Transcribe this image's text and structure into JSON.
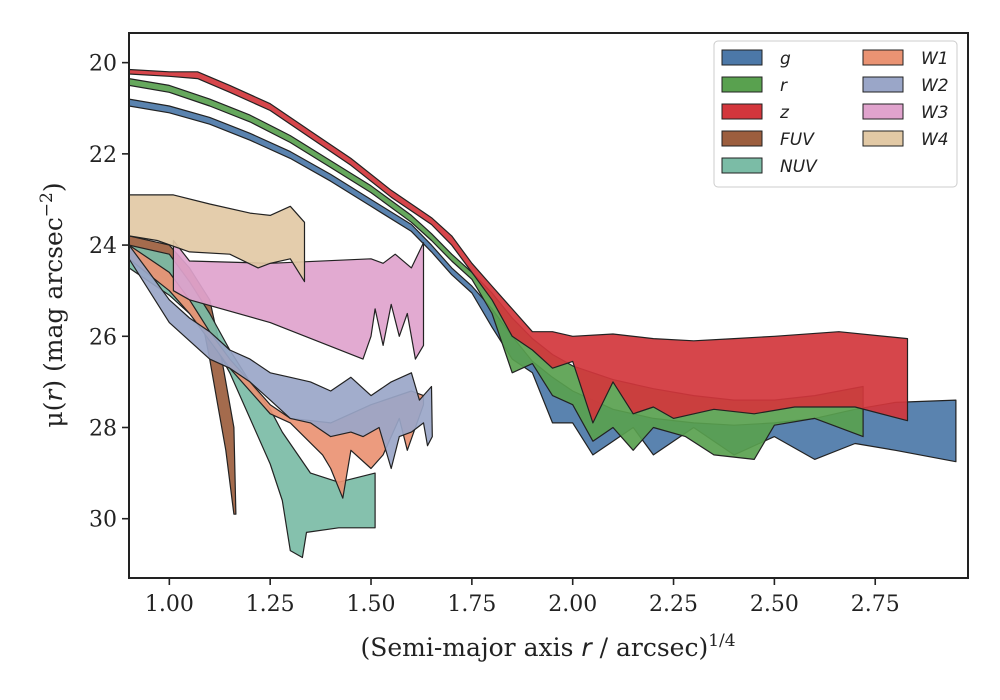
{
  "chart_data": {
    "type": "area",
    "xlabel": "(Semi-major axis r / arcsec)^{1/4}",
    "ylabel": "μ(r) (mag arcsec^{-2})",
    "xlim": [
      0.9,
      2.98
    ],
    "ylim": [
      31.3,
      19.35
    ],
    "y_inverted": true,
    "xticks": [
      "1.00",
      "1.25",
      "1.50",
      "1.75",
      "2.00",
      "2.25",
      "2.50",
      "2.75"
    ],
    "yticks": [
      "20",
      "22",
      "24",
      "26",
      "28",
      "30"
    ],
    "legend": {
      "placement": "top-right",
      "columns": 2
    },
    "series": [
      {
        "name": "g",
        "color": "#4c78a8",
        "upper": [
          [
            0.9,
            20.8
          ],
          [
            1.0,
            20.95
          ],
          [
            1.1,
            21.2
          ],
          [
            1.2,
            21.55
          ],
          [
            1.3,
            21.95
          ],
          [
            1.4,
            22.45
          ],
          [
            1.5,
            23.0
          ],
          [
            1.6,
            23.55
          ],
          [
            1.65,
            24.0
          ],
          [
            1.7,
            24.5
          ],
          [
            1.75,
            24.9
          ],
          [
            1.8,
            25.4
          ],
          [
            1.85,
            26.0
          ],
          [
            1.9,
            26.55
          ],
          [
            1.95,
            26.9
          ],
          [
            2.0,
            27.2
          ],
          [
            2.05,
            27.4
          ],
          [
            2.1,
            27.6
          ],
          [
            2.2,
            27.8
          ],
          [
            2.3,
            27.9
          ],
          [
            2.4,
            27.95
          ],
          [
            2.5,
            27.9
          ],
          [
            2.6,
            27.8
          ],
          [
            2.7,
            27.6
          ],
          [
            2.8,
            27.45
          ],
          [
            2.95,
            27.4
          ]
        ],
        "lower": [
          [
            2.95,
            28.75
          ],
          [
            2.8,
            28.5
          ],
          [
            2.7,
            28.35
          ],
          [
            2.6,
            28.7
          ],
          [
            2.5,
            28.2
          ],
          [
            2.4,
            28.6
          ],
          [
            2.3,
            28.0
          ],
          [
            2.2,
            28.6
          ],
          [
            2.15,
            28.0
          ],
          [
            2.1,
            28.3
          ],
          [
            2.05,
            28.6
          ],
          [
            2.0,
            27.9
          ],
          [
            1.95,
            27.9
          ],
          [
            1.9,
            26.8
          ],
          [
            1.85,
            26.5
          ],
          [
            1.8,
            25.8
          ],
          [
            1.75,
            25.05
          ],
          [
            1.7,
            24.65
          ],
          [
            1.65,
            24.15
          ],
          [
            1.6,
            23.7
          ],
          [
            1.5,
            23.15
          ],
          [
            1.4,
            22.6
          ],
          [
            1.3,
            22.1
          ],
          [
            1.2,
            21.7
          ],
          [
            1.1,
            21.35
          ],
          [
            1.0,
            21.1
          ],
          [
            0.9,
            20.95
          ]
        ]
      },
      {
        "name": "r",
        "color": "#59a14f",
        "upper": [
          [
            0.9,
            20.35
          ],
          [
            1.0,
            20.5
          ],
          [
            1.1,
            20.8
          ],
          [
            1.2,
            21.15
          ],
          [
            1.3,
            21.6
          ],
          [
            1.4,
            22.15
          ],
          [
            1.5,
            22.7
          ],
          [
            1.6,
            23.35
          ],
          [
            1.65,
            23.75
          ],
          [
            1.7,
            24.2
          ],
          [
            1.75,
            24.6
          ],
          [
            1.8,
            25.05
          ],
          [
            1.85,
            25.6
          ],
          [
            1.9,
            26.05
          ],
          [
            1.95,
            26.4
          ],
          [
            2.0,
            26.65
          ],
          [
            2.1,
            26.95
          ],
          [
            2.2,
            27.15
          ],
          [
            2.3,
            27.3
          ],
          [
            2.4,
            27.4
          ],
          [
            2.5,
            27.4
          ],
          [
            2.6,
            27.3
          ],
          [
            2.72,
            27.1
          ]
        ],
        "lower": [
          [
            2.72,
            28.2
          ],
          [
            2.6,
            27.8
          ],
          [
            2.5,
            27.95
          ],
          [
            2.45,
            28.7
          ],
          [
            2.35,
            28.6
          ],
          [
            2.28,
            28.2
          ],
          [
            2.2,
            28.0
          ],
          [
            2.15,
            28.5
          ],
          [
            2.1,
            28.0
          ],
          [
            2.05,
            28.3
          ],
          [
            2.0,
            27.5
          ],
          [
            1.95,
            27.3
          ],
          [
            1.9,
            26.6
          ],
          [
            1.85,
            26.8
          ],
          [
            1.8,
            25.5
          ],
          [
            1.75,
            24.75
          ],
          [
            1.7,
            24.35
          ],
          [
            1.65,
            23.9
          ],
          [
            1.6,
            23.5
          ],
          [
            1.5,
            22.85
          ],
          [
            1.4,
            22.3
          ],
          [
            1.3,
            21.75
          ],
          [
            1.2,
            21.3
          ],
          [
            1.1,
            20.95
          ],
          [
            1.0,
            20.65
          ],
          [
            0.9,
            20.5
          ]
        ]
      },
      {
        "name": "z",
        "color": "#d3363c",
        "upper": [
          [
            0.9,
            20.15
          ],
          [
            1.0,
            20.2
          ],
          [
            1.07,
            20.2
          ],
          [
            1.15,
            20.5
          ],
          [
            1.25,
            20.9
          ],
          [
            1.35,
            21.5
          ],
          [
            1.45,
            22.1
          ],
          [
            1.55,
            22.8
          ],
          [
            1.65,
            23.4
          ],
          [
            1.7,
            23.8
          ],
          [
            1.75,
            24.4
          ],
          [
            1.8,
            24.9
          ],
          [
            1.85,
            25.4
          ],
          [
            1.9,
            25.9
          ],
          [
            1.95,
            25.9
          ],
          [
            2.0,
            26.0
          ],
          [
            2.1,
            25.95
          ],
          [
            2.2,
            26.05
          ],
          [
            2.3,
            26.1
          ],
          [
            2.4,
            26.05
          ],
          [
            2.5,
            26.0
          ],
          [
            2.66,
            25.9
          ],
          [
            2.83,
            26.05
          ]
        ],
        "lower": [
          [
            2.83,
            27.85
          ],
          [
            2.7,
            27.55
          ],
          [
            2.55,
            27.55
          ],
          [
            2.45,
            27.7
          ],
          [
            2.35,
            27.6
          ],
          [
            2.25,
            27.8
          ],
          [
            2.2,
            27.55
          ],
          [
            2.15,
            27.7
          ],
          [
            2.1,
            27.0
          ],
          [
            2.05,
            27.9
          ],
          [
            2.0,
            26.55
          ],
          [
            1.95,
            26.7
          ],
          [
            1.9,
            26.3
          ],
          [
            1.85,
            26.0
          ],
          [
            1.8,
            25.2
          ],
          [
            1.75,
            24.6
          ],
          [
            1.7,
            24.0
          ],
          [
            1.65,
            23.55
          ],
          [
            1.55,
            22.95
          ],
          [
            1.45,
            22.25
          ],
          [
            1.35,
            21.65
          ],
          [
            1.25,
            21.05
          ],
          [
            1.15,
            20.65
          ],
          [
            1.07,
            20.35
          ],
          [
            1.0,
            20.3
          ],
          [
            0.9,
            20.25
          ]
        ]
      },
      {
        "name": "FUV",
        "color": "#9c5e3e",
        "upper": [
          [
            0.9,
            23.8
          ],
          [
            1.0,
            24.0
          ],
          [
            1.05,
            24.5
          ],
          [
            1.1,
            25.2
          ],
          [
            1.12,
            26.0
          ],
          [
            1.14,
            27.0
          ],
          [
            1.16,
            28.0
          ],
          [
            1.165,
            29.9
          ]
        ],
        "lower": [
          [
            1.16,
            29.9
          ],
          [
            1.14,
            28.5
          ],
          [
            1.12,
            27.5
          ],
          [
            1.1,
            26.5
          ],
          [
            1.08,
            25.6
          ],
          [
            1.05,
            25.2
          ],
          [
            1.0,
            24.8
          ],
          [
            0.9,
            24.2
          ]
        ]
      },
      {
        "name": "NUV",
        "color": "#7bbca6",
        "upper": [
          [
            0.9,
            24.0
          ],
          [
            1.0,
            24.2
          ],
          [
            1.05,
            24.8
          ],
          [
            1.1,
            25.5
          ],
          [
            1.15,
            26.3
          ],
          [
            1.2,
            27.0
          ],
          [
            1.25,
            27.6
          ],
          [
            1.28,
            28.1
          ],
          [
            1.35,
            29.0
          ],
          [
            1.42,
            29.2
          ],
          [
            1.51,
            29.0
          ]
        ],
        "lower": [
          [
            1.51,
            30.2
          ],
          [
            1.42,
            30.2
          ],
          [
            1.34,
            30.3
          ],
          [
            1.33,
            30.85
          ],
          [
            1.3,
            30.7
          ],
          [
            1.28,
            29.6
          ],
          [
            1.25,
            28.8
          ],
          [
            1.2,
            27.8
          ],
          [
            1.15,
            26.8
          ],
          [
            1.1,
            26.0
          ],
          [
            1.05,
            25.5
          ],
          [
            1.0,
            25.1
          ],
          [
            0.9,
            24.5
          ]
        ]
      },
      {
        "name": "W1",
        "color": "#ea9373",
        "upper": [
          [
            0.9,
            24.0
          ],
          [
            1.0,
            24.6
          ],
          [
            1.05,
            25.2
          ],
          [
            1.1,
            25.9
          ],
          [
            1.15,
            26.5
          ],
          [
            1.2,
            27.0
          ],
          [
            1.25,
            27.5
          ],
          [
            1.3,
            27.8
          ],
          [
            1.4,
            27.9
          ],
          [
            1.5,
            27.5
          ],
          [
            1.6,
            27.2
          ],
          [
            1.63,
            27.3
          ]
        ],
        "lower": [
          [
            1.63,
            27.5
          ],
          [
            1.59,
            28.5
          ],
          [
            1.57,
            27.8
          ],
          [
            1.53,
            28.6
          ],
          [
            1.5,
            28.9
          ],
          [
            1.45,
            28.5
          ],
          [
            1.43,
            29.55
          ],
          [
            1.4,
            28.9
          ],
          [
            1.38,
            28.6
          ],
          [
            1.3,
            27.9
          ],
          [
            1.25,
            27.7
          ],
          [
            1.2,
            27.2
          ],
          [
            1.15,
            26.7
          ],
          [
            1.1,
            26.1
          ],
          [
            1.05,
            25.5
          ],
          [
            1.0,
            25.0
          ],
          [
            0.9,
            24.3
          ]
        ]
      },
      {
        "name": "W2",
        "color": "#9aa6c8",
        "upper": [
          [
            0.9,
            24.0
          ],
          [
            0.95,
            24.6
          ],
          [
            1.0,
            25.2
          ],
          [
            1.05,
            25.6
          ],
          [
            1.1,
            25.9
          ],
          [
            1.15,
            26.3
          ],
          [
            1.2,
            26.5
          ],
          [
            1.25,
            26.8
          ],
          [
            1.3,
            26.9
          ],
          [
            1.35,
            27.0
          ],
          [
            1.4,
            27.2
          ],
          [
            1.45,
            26.9
          ],
          [
            1.5,
            27.3
          ],
          [
            1.55,
            27.0
          ],
          [
            1.6,
            26.8
          ],
          [
            1.62,
            27.4
          ],
          [
            1.65,
            27.1
          ]
        ],
        "lower": [
          [
            1.652,
            28.2
          ],
          [
            1.64,
            28.4
          ],
          [
            1.63,
            27.9
          ],
          [
            1.6,
            28.1
          ],
          [
            1.57,
            28.2
          ],
          [
            1.55,
            28.9
          ],
          [
            1.52,
            28.0
          ],
          [
            1.48,
            28.2
          ],
          [
            1.45,
            28.1
          ],
          [
            1.4,
            28.2
          ],
          [
            1.35,
            27.9
          ],
          [
            1.3,
            27.8
          ],
          [
            1.25,
            27.4
          ],
          [
            1.2,
            27.0
          ],
          [
            1.15,
            26.7
          ],
          [
            1.1,
            26.5
          ],
          [
            1.05,
            26.1
          ],
          [
            1.0,
            25.7
          ],
          [
            0.9,
            24.3
          ]
        ]
      },
      {
        "name": "W3",
        "color": "#e0a3cd",
        "upper": [
          [
            1.01,
            23.9
          ],
          [
            1.05,
            24.35
          ],
          [
            1.25,
            24.4
          ],
          [
            1.5,
            24.3
          ],
          [
            1.53,
            24.4
          ],
          [
            1.56,
            24.2
          ],
          [
            1.6,
            24.5
          ],
          [
            1.63,
            23.95
          ]
        ],
        "lower": [
          [
            1.63,
            26.2
          ],
          [
            1.61,
            26.5
          ],
          [
            1.59,
            25.5
          ],
          [
            1.57,
            26.0
          ],
          [
            1.55,
            25.3
          ],
          [
            1.53,
            26.2
          ],
          [
            1.51,
            25.4
          ],
          [
            1.5,
            26.0
          ],
          [
            1.48,
            26.5
          ],
          [
            1.25,
            25.7
          ],
          [
            1.05,
            25.2
          ],
          [
            1.01,
            25.0
          ]
        ]
      },
      {
        "name": "W4",
        "color": "#e2c9a5",
        "upper": [
          [
            0.9,
            22.9
          ],
          [
            1.01,
            22.9
          ],
          [
            1.1,
            23.1
          ],
          [
            1.2,
            23.3
          ],
          [
            1.25,
            23.35
          ],
          [
            1.3,
            23.15
          ],
          [
            1.335,
            23.5
          ]
        ],
        "lower": [
          [
            1.335,
            24.8
          ],
          [
            1.3,
            24.3
          ],
          [
            1.25,
            24.4
          ],
          [
            1.22,
            24.5
          ],
          [
            1.15,
            24.2
          ],
          [
            1.05,
            24.15
          ],
          [
            0.97,
            23.9
          ],
          [
            0.9,
            23.8
          ]
        ]
      }
    ]
  }
}
